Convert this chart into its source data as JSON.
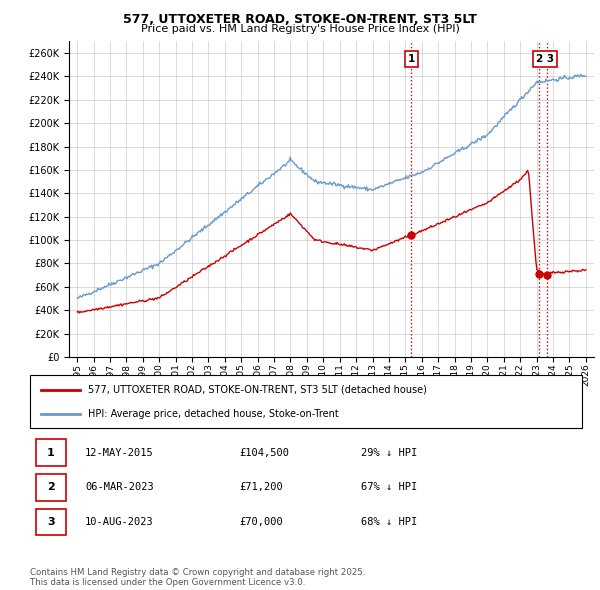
{
  "title": "577, UTTOXETER ROAD, STOKE-ON-TRENT, ST3 5LT",
  "subtitle": "Price paid vs. HM Land Registry's House Price Index (HPI)",
  "ylim": [
    0,
    270000
  ],
  "yticks": [
    0,
    20000,
    40000,
    60000,
    80000,
    100000,
    120000,
    140000,
    160000,
    180000,
    200000,
    220000,
    240000,
    260000
  ],
  "xlim_start": 1994.5,
  "xlim_end": 2026.5,
  "xticks": [
    1995,
    1996,
    1997,
    1998,
    1999,
    2000,
    2001,
    2002,
    2003,
    2004,
    2005,
    2006,
    2007,
    2008,
    2009,
    2010,
    2011,
    2012,
    2013,
    2014,
    2015,
    2016,
    2017,
    2018,
    2019,
    2020,
    2021,
    2022,
    2023,
    2024,
    2025,
    2026
  ],
  "hpi_color": "#6699cc",
  "price_color": "#cc0000",
  "vline_color": "#cc0000",
  "grid_color": "#cccccc",
  "bg_color": "#ffffff",
  "legend_label_price": "577, UTTOXETER ROAD, STOKE-ON-TRENT, ST3 5LT (detached house)",
  "legend_label_hpi": "HPI: Average price, detached house, Stoke-on-Trent",
  "annotations": [
    {
      "num": 1,
      "date_x": 2015.37,
      "price": 104500,
      "label": "1"
    },
    {
      "num": 2,
      "date_x": 2023.17,
      "price": 71200,
      "label": "2"
    },
    {
      "num": 3,
      "date_x": 2023.61,
      "price": 70000,
      "label": "3"
    }
  ],
  "table_rows": [
    {
      "num": "1",
      "date": "12-MAY-2015",
      "price": "£104,500",
      "pct": "29% ↓ HPI"
    },
    {
      "num": "2",
      "date": "06-MAR-2023",
      "price": "£71,200",
      "pct": "67% ↓ HPI"
    },
    {
      "num": "3",
      "date": "10-AUG-2023",
      "price": "£70,000",
      "pct": "68% ↓ HPI"
    }
  ],
  "footnote": "Contains HM Land Registry data © Crown copyright and database right 2025.\nThis data is licensed under the Open Government Licence v3.0."
}
